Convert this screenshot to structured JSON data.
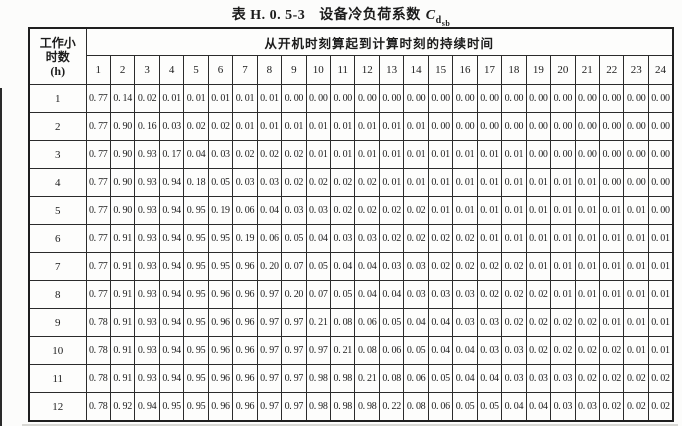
{
  "title": {
    "prefix": "表 H. 0. 5-3",
    "name": "设备冷负荷系数",
    "symbol": {
      "base": "C",
      "sub": "d",
      "subsub": "sb"
    }
  },
  "table": {
    "corner_lines": [
      "工作小",
      "时数",
      "(h)"
    ],
    "span_header": "从开机时刻算起到计算时刻的持续时间",
    "duration_columns": [
      1,
      2,
      3,
      4,
      5,
      6,
      7,
      8,
      9,
      10,
      11,
      12,
      13,
      14,
      15,
      16,
      17,
      18,
      19,
      20,
      21,
      22,
      23,
      24
    ],
    "rows": [
      {
        "hours": 1,
        "values": [
          0.77,
          0.14,
          0.02,
          0.01,
          0.01,
          0.01,
          0.01,
          0.01,
          0.0,
          0.0,
          0.0,
          0.0,
          0.0,
          0.0,
          0.0,
          0.0,
          0.0,
          0.0,
          0.0,
          0.0,
          0.0,
          0.0,
          0.0,
          0.0
        ]
      },
      {
        "hours": 2,
        "values": [
          0.77,
          0.9,
          0.16,
          0.03,
          0.02,
          0.02,
          0.01,
          0.01,
          0.01,
          0.01,
          0.01,
          0.01,
          0.01,
          0.01,
          0.0,
          0.0,
          0.0,
          0.0,
          0.0,
          0.0,
          0.0,
          0.0,
          0.0,
          0.0
        ]
      },
      {
        "hours": 3,
        "values": [
          0.77,
          0.9,
          0.93,
          0.17,
          0.04,
          0.03,
          0.02,
          0.02,
          0.02,
          0.01,
          0.01,
          0.01,
          0.01,
          0.01,
          0.01,
          0.01,
          0.01,
          0.01,
          0.0,
          0.0,
          0.0,
          0.0,
          0.0,
          0.0
        ]
      },
      {
        "hours": 4,
        "values": [
          0.77,
          0.9,
          0.93,
          0.94,
          0.18,
          0.05,
          0.03,
          0.03,
          0.02,
          0.02,
          0.02,
          0.02,
          0.01,
          0.01,
          0.01,
          0.01,
          0.01,
          0.01,
          0.01,
          0.01,
          0.01,
          0.0,
          0.0,
          0.0
        ]
      },
      {
        "hours": 5,
        "values": [
          0.77,
          0.9,
          0.93,
          0.94,
          0.95,
          0.19,
          0.06,
          0.04,
          0.03,
          0.03,
          0.02,
          0.02,
          0.02,
          0.02,
          0.01,
          0.01,
          0.01,
          0.01,
          0.01,
          0.01,
          0.01,
          0.01,
          0.01,
          0.0
        ]
      },
      {
        "hours": 6,
        "values": [
          0.77,
          0.91,
          0.93,
          0.94,
          0.95,
          0.95,
          0.19,
          0.06,
          0.05,
          0.04,
          0.03,
          0.03,
          0.02,
          0.02,
          0.02,
          0.02,
          0.01,
          0.01,
          0.01,
          0.01,
          0.01,
          0.01,
          0.01,
          0.01
        ]
      },
      {
        "hours": 7,
        "values": [
          0.77,
          0.91,
          0.93,
          0.94,
          0.95,
          0.95,
          0.96,
          0.2,
          0.07,
          0.05,
          0.04,
          0.04,
          0.03,
          0.03,
          0.02,
          0.02,
          0.02,
          0.02,
          0.01,
          0.01,
          0.01,
          0.01,
          0.01,
          0.01
        ]
      },
      {
        "hours": 8,
        "values": [
          0.77,
          0.91,
          0.93,
          0.94,
          0.95,
          0.96,
          0.96,
          0.97,
          0.2,
          0.07,
          0.05,
          0.04,
          0.04,
          0.03,
          0.03,
          0.03,
          0.02,
          0.02,
          0.02,
          0.01,
          0.01,
          0.01,
          0.01,
          0.01
        ]
      },
      {
        "hours": 9,
        "values": [
          0.78,
          0.91,
          0.93,
          0.94,
          0.95,
          0.96,
          0.96,
          0.97,
          0.97,
          0.21,
          0.08,
          0.06,
          0.05,
          0.04,
          0.04,
          0.03,
          0.03,
          0.02,
          0.02,
          0.02,
          0.02,
          0.01,
          0.01,
          0.01
        ]
      },
      {
        "hours": 10,
        "values": [
          0.78,
          0.91,
          0.93,
          0.94,
          0.95,
          0.96,
          0.96,
          0.97,
          0.97,
          0.97,
          0.21,
          0.08,
          0.06,
          0.05,
          0.04,
          0.04,
          0.03,
          0.03,
          0.02,
          0.02,
          0.02,
          0.02,
          0.01,
          0.01
        ]
      },
      {
        "hours": 11,
        "values": [
          0.78,
          0.91,
          0.93,
          0.94,
          0.95,
          0.96,
          0.96,
          0.97,
          0.97,
          0.98,
          0.98,
          0.21,
          0.08,
          0.06,
          0.05,
          0.04,
          0.04,
          0.03,
          0.03,
          0.03,
          0.02,
          0.02,
          0.02,
          0.02
        ]
      },
      {
        "hours": 12,
        "values": [
          0.78,
          0.92,
          0.94,
          0.95,
          0.95,
          0.96,
          0.96,
          0.97,
          0.97,
          0.98,
          0.98,
          0.98,
          0.22,
          0.08,
          0.06,
          0.05,
          0.05,
          0.04,
          0.04,
          0.03,
          0.03,
          0.02,
          0.02,
          0.02
        ]
      }
    ]
  }
}
